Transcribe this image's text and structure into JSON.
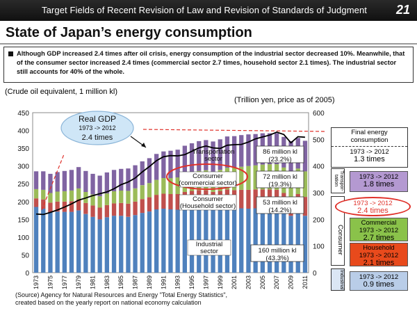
{
  "header": {
    "text": "Target Fields of Recent Revision of Law and Revision of Standards of Judgment",
    "page_number": "21"
  },
  "title": "State of Japan’s energy consumption",
  "summary": "Although GDP increased 2.4 times after oil crisis, energy consumption of the industrial sector decreased 10%. Meanwhile, that of the consumer sector increased 2.4 times (commercial sector 2.7 times, household sector 2.1 times). The industrial sector still accounts for 40% of the whole.",
  "colors": {
    "industrial": "#4f81bd",
    "household": "#c0504d",
    "commercial": "#9bbb59",
    "transport": "#8064a2",
    "gdp": "#000000",
    "callout": "#e0312a"
  },
  "chart_data": {
    "type": "bar",
    "stacked": true,
    "title": "",
    "ylabel": "(Crude oil equivalent, 1 million kl)",
    "y2label": "(Trillion yen, price as of 2005)",
    "ylim": [
      0,
      450
    ],
    "y2lim": [
      0,
      600
    ],
    "yticks": [
      "0",
      "50",
      "100",
      "150",
      "200",
      "250",
      "300",
      "350",
      "400",
      "450"
    ],
    "y2ticks": [
      "0",
      "100",
      "200",
      "300",
      "400",
      "500",
      "600"
    ],
    "categories": [
      "1973",
      "1974",
      "1975",
      "1976",
      "1977",
      "1978",
      "1979",
      "1980",
      "1981",
      "1982",
      "1983",
      "1984",
      "1985",
      "1986",
      "1987",
      "1988",
      "1989",
      "1990",
      "1991",
      "1992",
      "1993",
      "1994",
      "1995",
      "1996",
      "1997",
      "1998",
      "1999",
      "2000",
      "2001",
      "2002",
      "2003",
      "2004",
      "2005",
      "2006",
      "2007",
      "2008",
      "2009",
      "2010",
      "2011"
    ],
    "xticks": [
      "1973",
      "1975",
      "1977",
      "1979",
      "1981",
      "1983",
      "1985",
      "1987",
      "1989",
      "1991",
      "1993",
      "1995",
      "1997",
      "1999",
      "2001",
      "2003",
      "2005",
      "2007",
      "2009",
      "2011"
    ],
    "series": [
      {
        "name": "Industrial sector",
        "values": [
          185,
          180,
          170,
          172,
          171,
          171,
          175,
          165,
          157,
          150,
          156,
          160,
          160,
          157,
          162,
          168,
          172,
          178,
          180,
          178,
          177,
          182,
          183,
          184,
          184,
          178,
          180,
          183,
          180,
          181,
          180,
          181,
          180,
          180,
          180,
          171,
          160,
          167,
          160
        ]
      },
      {
        "name": "Consumer (Household sector)",
        "values": [
          24,
          26,
          27,
          28,
          29,
          30,
          31,
          31,
          32,
          33,
          34,
          35,
          36,
          37,
          38,
          39,
          40,
          41,
          42,
          43,
          44,
          45,
          47,
          48,
          48,
          49,
          50,
          51,
          52,
          52,
          53,
          53,
          54,
          54,
          53,
          53,
          53,
          54,
          53
        ]
      },
      {
        "name": "Consumer (commercial sector)",
        "values": [
          26,
          27,
          27,
          28,
          29,
          30,
          31,
          31,
          31,
          32,
          33,
          34,
          35,
          36,
          37,
          39,
          40,
          42,
          44,
          45,
          47,
          50,
          52,
          54,
          56,
          57,
          59,
          61,
          63,
          65,
          67,
          68,
          70,
          71,
          72,
          72,
          72,
          72,
          72
        ]
      },
      {
        "name": "Transportation sector",
        "values": [
          50,
          52,
          54,
          55,
          57,
          58,
          60,
          59,
          58,
          58,
          59,
          60,
          61,
          63,
          65,
          67,
          70,
          73,
          75,
          77,
          78,
          80,
          82,
          84,
          85,
          85,
          86,
          88,
          89,
          89,
          89,
          88,
          88,
          87,
          87,
          86,
          85,
          86,
          86
        ]
      },
      {
        "name": "Real GDP",
        "axis": "right",
        "values": [
          220,
          218,
          226,
          235,
          246,
          258,
          272,
          280,
          289,
          296,
          303,
          315,
          330,
          340,
          355,
          378,
          398,
          420,
          435,
          439,
          438,
          443,
          455,
          468,
          475,
          468,
          466,
          478,
          480,
          481,
          490,
          502,
          509,
          516,
          527,
          518,
          487,
          510,
          508
        ]
      }
    ],
    "annotations": [
      {
        "label": "Transportation sector",
        "value": "86 million kl",
        "share": "(23.2%)"
      },
      {
        "label": "Consumer (commercial sector)",
        "value": "72 million kl",
        "share": "(19.3%)"
      },
      {
        "label": "Consumer (Household sector)",
        "value": "53 million kl",
        "share": "(14.2%)"
      },
      {
        "label": "Industrial sector",
        "value": "160 million kl",
        "share": "(43.3%)"
      }
    ],
    "gdp_callout": {
      "title": "Real GDP",
      "period": "1973 -> 2012",
      "ratio": "2.4 times"
    }
  },
  "side_panel": {
    "final_label": "Final energy consumption",
    "final_period": "1973 -> 2012",
    "final_ratio": "1.3 times",
    "transport_tag": "Transpor-tation",
    "transport_period": "1973 -> 2012",
    "transport_ratio": "1.8 times",
    "consumer_tag": "Consumer",
    "consumer_period": "1973 -> 2012",
    "consumer_ratio": "2.4 times",
    "commercial_label": "Commercial",
    "commercial_period": "1973 -> 2012",
    "commercial_ratio": "2.7 times",
    "household_label": "Household",
    "household_period": "1973 -> 2012",
    "household_ratio": "2.1 times",
    "industrial_tag": "Industrial",
    "industrial_period": "1973 -> 2012",
    "industrial_ratio": "0.9 times"
  },
  "source_lines": [
    "(Source) Agency for Natural Resources and Energy \"Total Energy Statistics\",",
    "created based on the yearly report on national economy calculation"
  ]
}
